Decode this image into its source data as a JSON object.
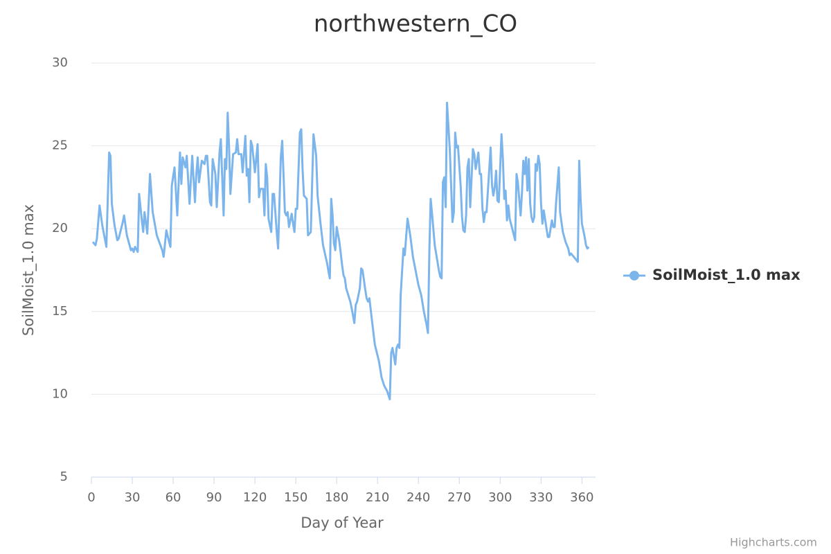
{
  "chart_data": {
    "type": "line",
    "title": "northwestern_CO",
    "x_label": "Day of Year",
    "y_label": "SoilMoist_1.0 max",
    "credit": "Highcharts.com",
    "xlim": [
      0,
      370
    ],
    "xticks": [
      0,
      30,
      60,
      90,
      120,
      150,
      180,
      210,
      240,
      270,
      300,
      330,
      360
    ],
    "ylim": [
      5,
      30
    ],
    "yticks": [
      5,
      10,
      15,
      20,
      25,
      30
    ],
    "grid": true,
    "legend": "right",
    "x": [
      1,
      3,
      4,
      6,
      8,
      11,
      13,
      14,
      15,
      17,
      19,
      20,
      23,
      24,
      26,
      29,
      30,
      31,
      32,
      34,
      35,
      37,
      38,
      39,
      41,
      43,
      45,
      48,
      52,
      53,
      55,
      57,
      58,
      59,
      61,
      63,
      65,
      66,
      67,
      69,
      70,
      72,
      74,
      76,
      77,
      78,
      79,
      81,
      83,
      84,
      85,
      87,
      88,
      89,
      91,
      92,
      94,
      95,
      97,
      98,
      99,
      100,
      101,
      102,
      104,
      106,
      107,
      108,
      110,
      111,
      113,
      114,
      115,
      116,
      117,
      118,
      120,
      122,
      123,
      124,
      126,
      127,
      128,
      129,
      130,
      132,
      133,
      134,
      135,
      136,
      137,
      139,
      140,
      141,
      142,
      143,
      144,
      145,
      147,
      148,
      149,
      150,
      151,
      153,
      154,
      155,
      156,
      158,
      159,
      161,
      163,
      165,
      166,
      168,
      170,
      173,
      174,
      175,
      176,
      177,
      178,
      179,
      180,
      182,
      184,
      185,
      186,
      187,
      190,
      191,
      193,
      194,
      195,
      197,
      198,
      199,
      201,
      202,
      203,
      204,
      206,
      208,
      211,
      213,
      215,
      217,
      219,
      220,
      221,
      223,
      224,
      225,
      226,
      227,
      229,
      230,
      232,
      234,
      236,
      240,
      242,
      244,
      246,
      247,
      248,
      249,
      250,
      252,
      255,
      256,
      257,
      258,
      259,
      260,
      261,
      263,
      265,
      266,
      267,
      268,
      269,
      271,
      272,
      273,
      274,
      275,
      276,
      277,
      278,
      280,
      281,
      282,
      284,
      285,
      286,
      287,
      288,
      289,
      290,
      293,
      294,
      295,
      296,
      297,
      298,
      299,
      301,
      302,
      303,
      304,
      305,
      306,
      307,
      311,
      312,
      313,
      315,
      316,
      317,
      318,
      319,
      320,
      321,
      322,
      323,
      324,
      325,
      326,
      327,
      328,
      329,
      330,
      331,
      332,
      334,
      335,
      336,
      338,
      339,
      340,
      341,
      343,
      344,
      346,
      348,
      350,
      351,
      352,
      355,
      357,
      358,
      359,
      360,
      362,
      363,
      364,
      365
    ],
    "series": [
      {
        "name": "SoilMoist_1.0 max",
        "color": "#7cb5ec",
        "values": [
          19.2,
          19.0,
          19.4,
          21.4,
          20.2,
          18.9,
          24.6,
          24.4,
          21.5,
          20.2,
          19.3,
          19.4,
          20.4,
          20.8,
          19.6,
          18.7,
          18.8,
          18.6,
          18.9,
          18.6,
          22.1,
          20.5,
          19.8,
          21.0,
          19.7,
          23.3,
          21.0,
          19.6,
          18.7,
          18.3,
          19.9,
          19.2,
          18.9,
          22.6,
          23.7,
          20.8,
          24.6,
          22.7,
          24.3,
          23.7,
          24.4,
          21.5,
          24.4,
          21.6,
          23.3,
          24.3,
          22.8,
          24.1,
          23.9,
          24.4,
          24.4,
          21.6,
          21.4,
          24.2,
          23.3,
          21.3,
          24.6,
          25.4,
          20.8,
          24.2,
          23.6,
          27.0,
          25.0,
          22.1,
          24.5,
          24.6,
          25.4,
          24.5,
          24.5,
          23.4,
          25.6,
          23.2,
          23.6,
          21.6,
          25.3,
          25.0,
          23.4,
          25.1,
          21.9,
          22.4,
          22.4,
          20.8,
          23.9,
          23.1,
          20.6,
          19.8,
          22.1,
          22.1,
          21.0,
          19.8,
          18.8,
          24.3,
          25.3,
          23.3,
          21.0,
          20.8,
          21.0,
          20.1,
          20.9,
          20.3,
          19.8,
          21.2,
          21.2,
          25.8,
          26.0,
          23.5,
          22.0,
          21.8,
          19.6,
          19.8,
          25.7,
          24.4,
          22.0,
          20.4,
          19.0,
          17.9,
          17.4,
          17.0,
          21.8,
          20.8,
          19.1,
          18.7,
          20.1,
          19.2,
          17.8,
          17.2,
          17.0,
          16.4,
          15.6,
          15.2,
          14.3,
          15.4,
          15.6,
          16.4,
          17.6,
          17.5,
          16.3,
          15.8,
          15.6,
          15.8,
          14.4,
          13.0,
          12.0,
          11.0,
          10.5,
          10.2,
          9.7,
          12.5,
          12.8,
          11.8,
          12.8,
          13.0,
          12.8,
          16.0,
          18.8,
          18.4,
          20.6,
          19.6,
          18.3,
          16.6,
          16.0,
          15.0,
          14.2,
          13.7,
          18.6,
          21.8,
          20.9,
          19.0,
          17.5,
          17.1,
          17.0,
          22.8,
          23.1,
          21.3,
          27.6,
          24.8,
          20.4,
          21.0,
          25.8,
          24.9,
          25.0,
          22.6,
          20.7,
          19.9,
          19.8,
          20.8,
          23.7,
          24.2,
          21.3,
          24.8,
          24.5,
          23.6,
          24.6,
          23.3,
          23.3,
          21.2,
          20.4,
          21.0,
          21.0,
          24.9,
          22.6,
          22.0,
          22.5,
          23.5,
          21.7,
          21.6,
          25.7,
          24.2,
          21.8,
          22.3,
          20.5,
          21.4,
          20.6,
          19.3,
          23.3,
          22.8,
          20.8,
          22.2,
          24.1,
          23.3,
          24.3,
          22.3,
          24.2,
          21.5,
          20.7,
          20.4,
          20.7,
          23.9,
          23.5,
          24.4,
          23.9,
          21.5,
          20.3,
          21.1,
          20.0,
          19.5,
          19.5,
          20.5,
          20.1,
          20.1,
          21.5,
          23.7,
          21.0,
          19.8,
          19.2,
          18.8,
          18.4,
          18.5,
          18.2,
          18.0,
          24.1,
          21.8,
          20.3,
          19.5,
          19.0,
          18.8,
          18.9
        ]
      }
    ]
  }
}
